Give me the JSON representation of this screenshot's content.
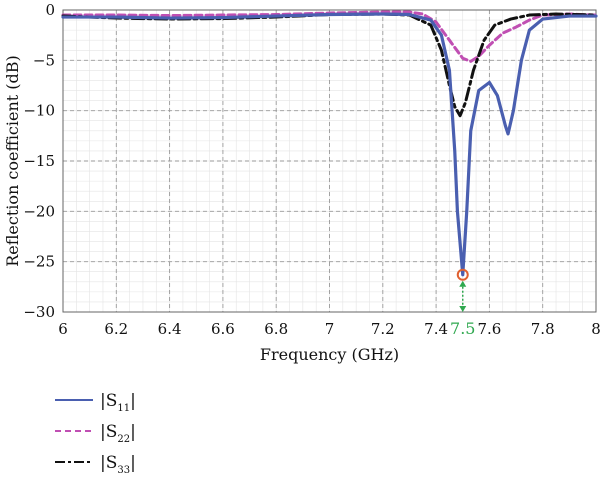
{
  "chart_data": {
    "type": "line",
    "xlabel": "Frequency (GHz)",
    "ylabel": "Reflection coefficient (dB)",
    "xlim": [
      6,
      8
    ],
    "ylim": [
      -30,
      0
    ],
    "x_ticks": [
      "6",
      "6.2",
      "6.4",
      "6.6",
      "6.8",
      "7",
      "7.2",
      "7.4",
      "7.6",
      "7.8",
      "8"
    ],
    "y_ticks": [
      "0",
      "−5",
      "−10",
      "−15",
      "−20",
      "−25",
      "−30"
    ],
    "grid": true,
    "legend_placement": "bottom-left (below plot)",
    "series": [
      {
        "name": "|S11|",
        "color": "#4a5fb0",
        "style": "solid",
        "points": [
          [
            6.0,
            -0.7
          ],
          [
            6.2,
            -0.7
          ],
          [
            6.4,
            -0.8
          ],
          [
            6.6,
            -0.75
          ],
          [
            6.8,
            -0.6
          ],
          [
            7.0,
            -0.45
          ],
          [
            7.2,
            -0.4
          ],
          [
            7.3,
            -0.45
          ],
          [
            7.38,
            -1.0
          ],
          [
            7.42,
            -2.5
          ],
          [
            7.45,
            -6.0
          ],
          [
            7.47,
            -14.0
          ],
          [
            7.48,
            -20.0
          ],
          [
            7.5,
            -26.3
          ],
          [
            7.515,
            -20.0
          ],
          [
            7.53,
            -12.0
          ],
          [
            7.56,
            -8.0
          ],
          [
            7.6,
            -7.2
          ],
          [
            7.63,
            -8.5
          ],
          [
            7.66,
            -11.5
          ],
          [
            7.67,
            -12.3
          ],
          [
            7.69,
            -10.0
          ],
          [
            7.72,
            -5.0
          ],
          [
            7.75,
            -2.0
          ],
          [
            7.8,
            -0.9
          ],
          [
            7.9,
            -0.6
          ],
          [
            8.0,
            -0.6
          ]
        ]
      },
      {
        "name": "|S22|",
        "color": "#c04fb3",
        "style": "dashed",
        "points": [
          [
            6.0,
            -0.5
          ],
          [
            6.2,
            -0.5
          ],
          [
            6.4,
            -0.55
          ],
          [
            6.6,
            -0.5
          ],
          [
            6.8,
            -0.45
          ],
          [
            7.0,
            -0.3
          ],
          [
            7.2,
            -0.2
          ],
          [
            7.3,
            -0.2
          ],
          [
            7.35,
            -0.4
          ],
          [
            7.4,
            -1.2
          ],
          [
            7.45,
            -3.0
          ],
          [
            7.5,
            -4.8
          ],
          [
            7.53,
            -5.1
          ],
          [
            7.56,
            -4.6
          ],
          [
            7.6,
            -3.5
          ],
          [
            7.65,
            -2.3
          ],
          [
            7.7,
            -1.7
          ],
          [
            7.75,
            -1.0
          ],
          [
            7.8,
            -0.5
          ],
          [
            7.9,
            -0.4
          ],
          [
            8.0,
            -0.5
          ]
        ]
      },
      {
        "name": "|S33|",
        "color": "#111111",
        "style": "dashdot",
        "points": [
          [
            6.0,
            -0.6
          ],
          [
            6.2,
            -0.8
          ],
          [
            6.4,
            -0.9
          ],
          [
            6.6,
            -0.85
          ],
          [
            6.8,
            -0.7
          ],
          [
            7.0,
            -0.45
          ],
          [
            7.2,
            -0.4
          ],
          [
            7.3,
            -0.5
          ],
          [
            7.38,
            -1.5
          ],
          [
            7.42,
            -4.0
          ],
          [
            7.45,
            -7.5
          ],
          [
            7.47,
            -9.6
          ],
          [
            7.49,
            -10.5
          ],
          [
            7.51,
            -9.2
          ],
          [
            7.54,
            -6.0
          ],
          [
            7.58,
            -3.0
          ],
          [
            7.62,
            -1.5
          ],
          [
            7.68,
            -0.9
          ],
          [
            7.75,
            -0.5
          ],
          [
            7.85,
            -0.4
          ],
          [
            8.0,
            -0.5
          ]
        ]
      }
    ],
    "annotations": [
      {
        "text": "7.5",
        "x": 7.5,
        "y": -26.3,
        "color": "#2fa84f",
        "marker_color": "#e06030"
      }
    ]
  },
  "legend": {
    "items": [
      {
        "main": "|S",
        "sub": "11",
        "close": "|",
        "color": "#4a5fb0",
        "style": "solid"
      },
      {
        "main": "|S",
        "sub": "22",
        "close": "|",
        "color": "#c04fb3",
        "style": "dashed"
      },
      {
        "main": "|S",
        "sub": "33",
        "close": "|",
        "color": "#111111",
        "style": "dashdot"
      }
    ]
  }
}
